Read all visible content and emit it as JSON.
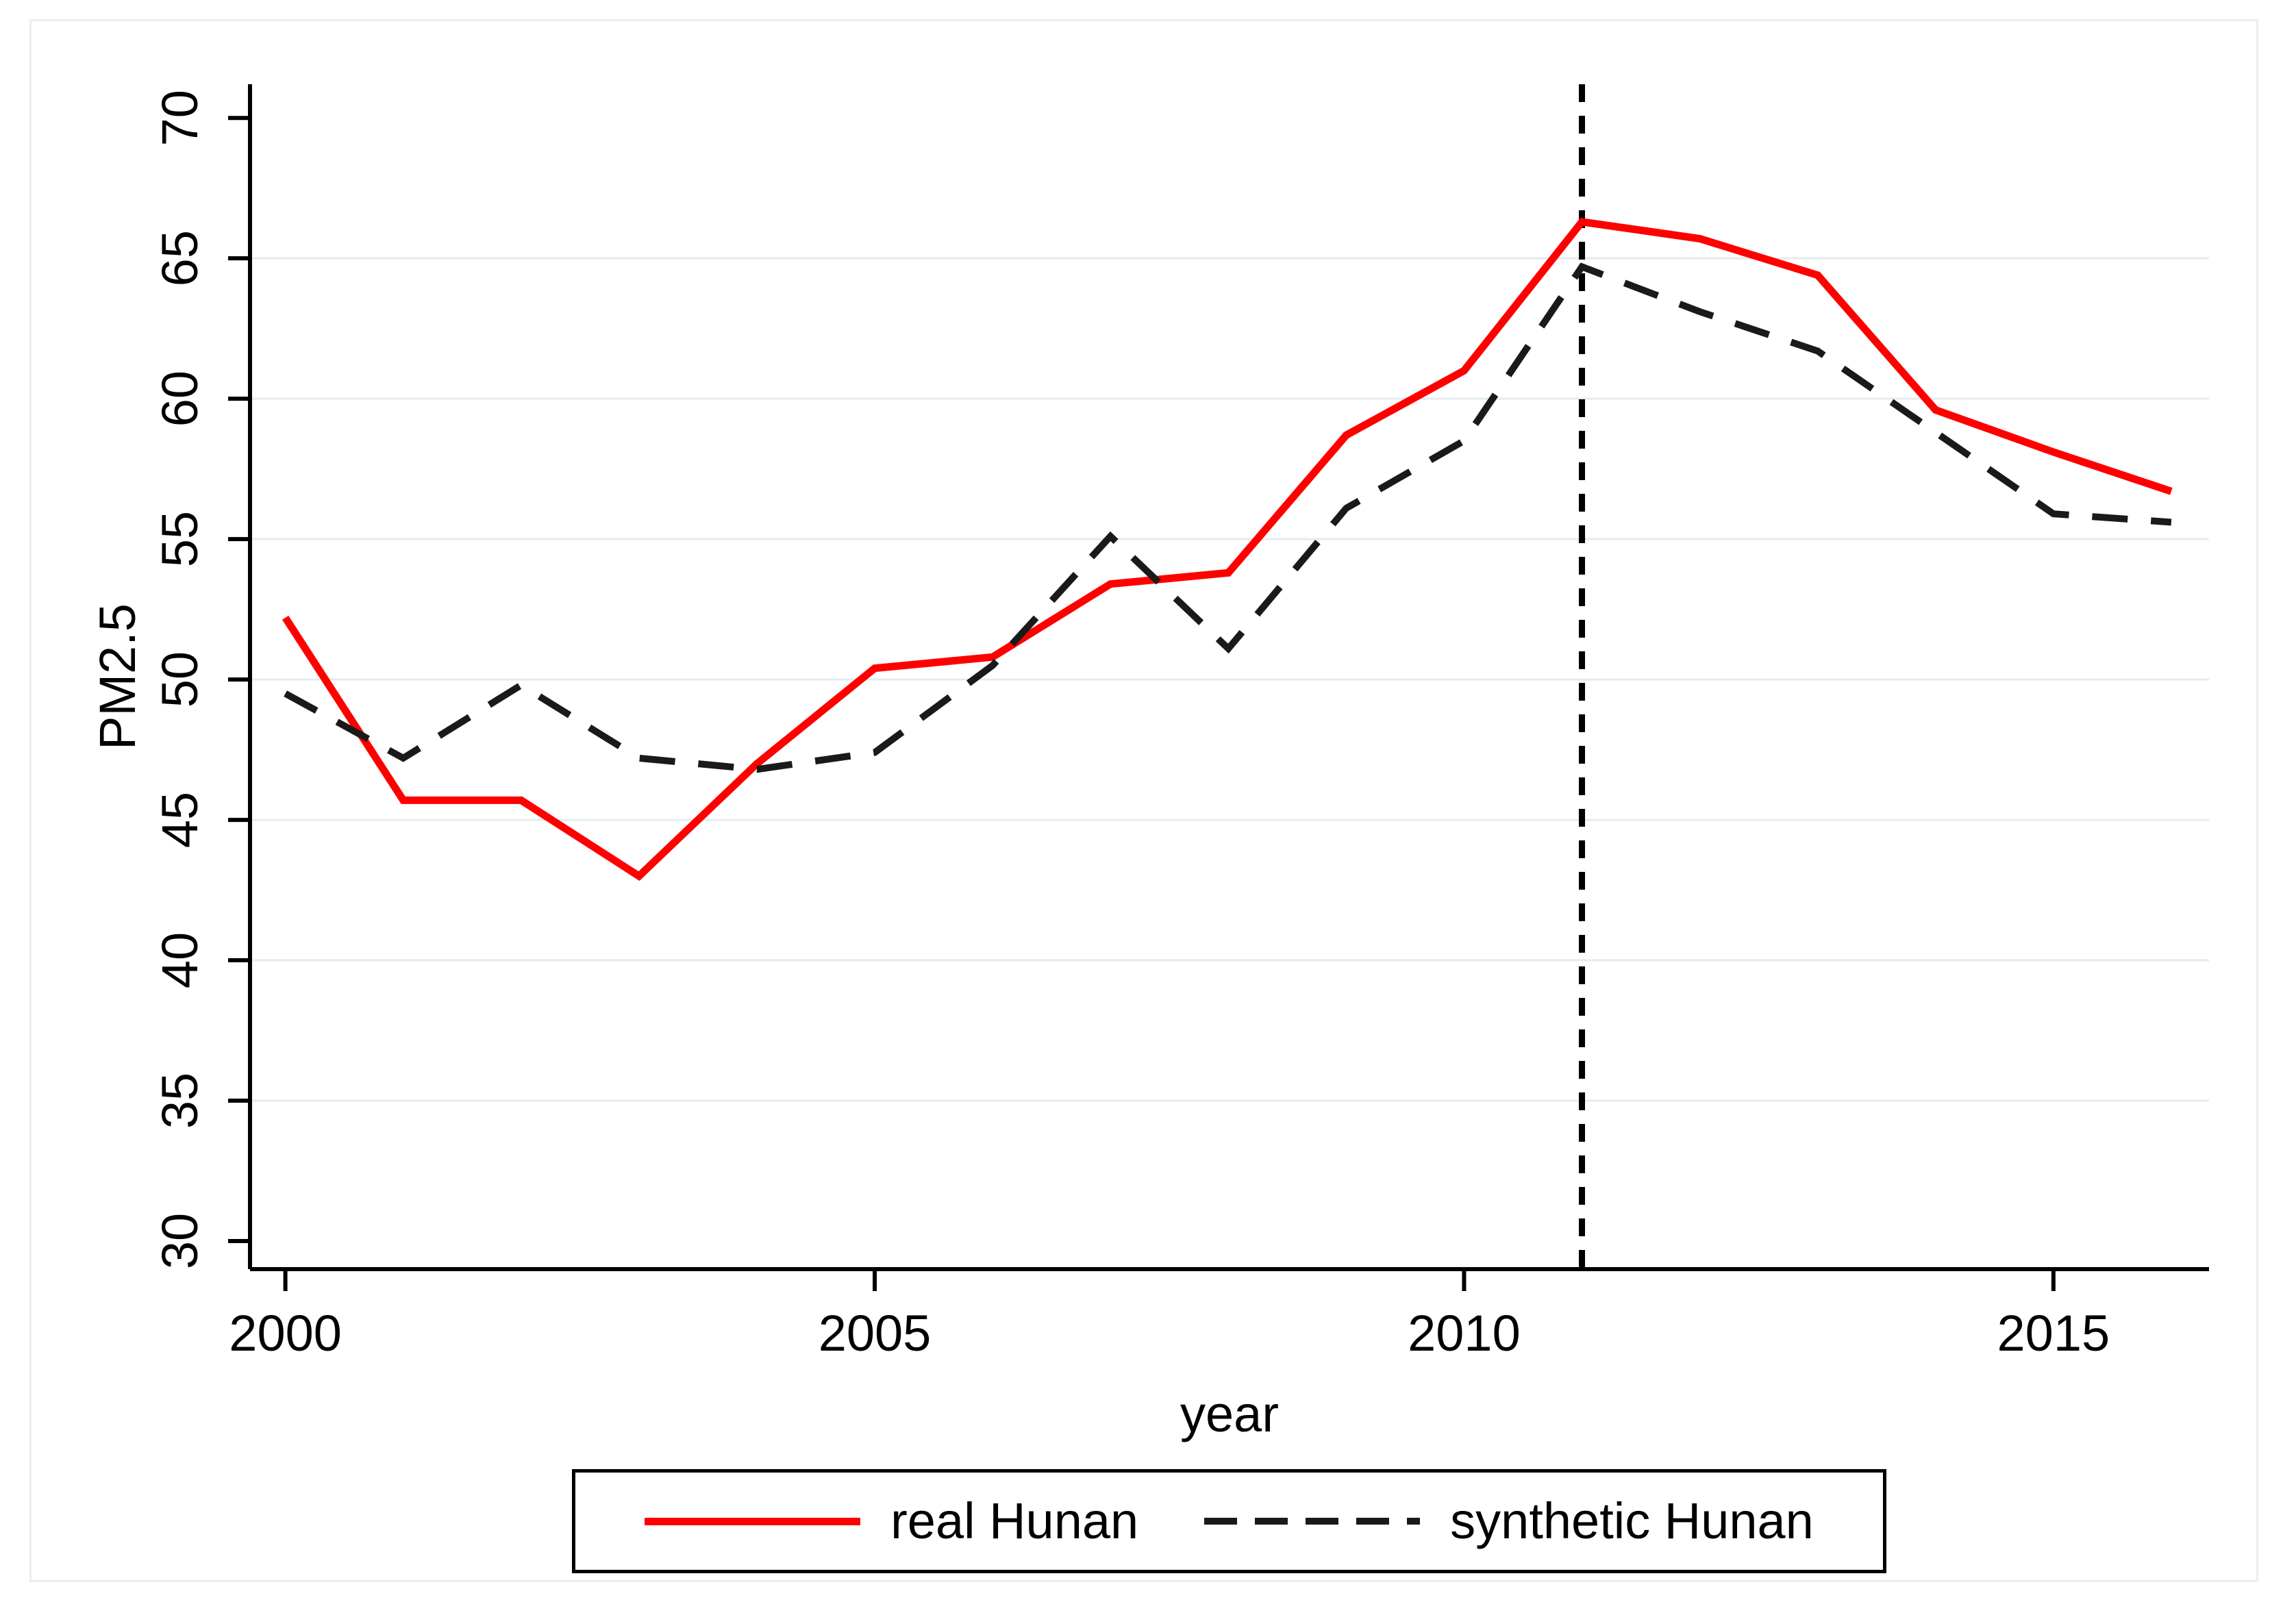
{
  "figure": {
    "y_axis_title": "PM2.5",
    "x_axis_title": "year"
  },
  "colors": {
    "real_line": "#fe0000",
    "synthetic_line": "#1a1a1a",
    "gridline": "#e2ecf0",
    "axis": "#000000",
    "figure_border": "#e9eef1",
    "treatment_line": "#000000",
    "text": "#000000"
  },
  "legend": {
    "items": [
      {
        "label": "real Hunan",
        "swatch": "solid-red-line"
      },
      {
        "label": "synthetic Hunan",
        "swatch": "dashed-black-line"
      }
    ]
  },
  "chart_data": {
    "type": "line",
    "title": "",
    "xlabel": "year",
    "ylabel": "PM2.5",
    "x": [
      2000,
      2001,
      2002,
      2003,
      2004,
      2005,
      2006,
      2007,
      2008,
      2009,
      2010,
      2011,
      2012,
      2013,
      2014,
      2015,
      2016
    ],
    "series": [
      {
        "name": "real Hunan",
        "style": "solid",
        "values": [
          52.2,
          45.7,
          45.7,
          43.0,
          47.0,
          50.4,
          50.8,
          53.4,
          53.8,
          58.7,
          61.0,
          66.3,
          65.7,
          64.4,
          59.6,
          58.1,
          56.7
        ]
      },
      {
        "name": "synthetic Hunan",
        "style": "dashed",
        "values": [
          49.5,
          47.2,
          49.8,
          47.2,
          46.8,
          47.4,
          50.5,
          55.1,
          51.1,
          56.1,
          58.5,
          64.7,
          63.1,
          61.7,
          58.8,
          55.9,
          55.6
        ]
      }
    ],
    "y_ticks": [
      30,
      35,
      40,
      45,
      50,
      55,
      60,
      65,
      70
    ],
    "x_ticks": [
      2000,
      2005,
      2010,
      2015
    ],
    "gridline_values": [
      35,
      40,
      45,
      50,
      55,
      60,
      65
    ],
    "ylim": [
      29.0,
      71.2
    ],
    "xlim": [
      1999.7,
      2016.32
    ],
    "grid": "horizontal",
    "legend_position": "bottom-center",
    "vline": {
      "x": 2011,
      "style": "dotted"
    }
  }
}
